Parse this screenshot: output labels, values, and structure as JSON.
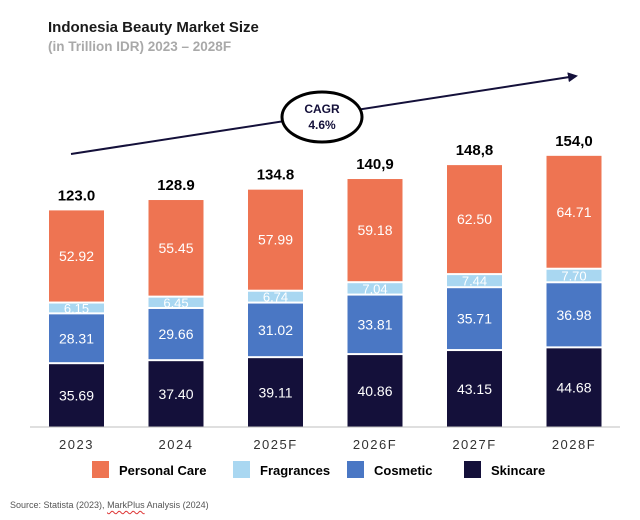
{
  "chart_data": {
    "type": "bar",
    "stacked": true,
    "title": "Indonesia Beauty Market Size",
    "subtitle": "(in Trillion IDR) 2023 – 2028F",
    "categories": [
      "2023",
      "2024",
      "2025F",
      "2026F",
      "2027F",
      "2028F"
    ],
    "totals": [
      "123.0",
      "128.9",
      "134.8",
      "140,9",
      "148,8",
      "154,0"
    ],
    "series": [
      {
        "name": "Skincare",
        "color": "#14103a",
        "values": [
          35.69,
          37.4,
          39.11,
          40.86,
          43.15,
          44.68
        ],
        "labels": [
          "35.69",
          "37.40",
          "39.11",
          "40.86",
          "43.15",
          "44.68"
        ]
      },
      {
        "name": "Cosmetic",
        "color": "#4a77c4",
        "values": [
          28.31,
          29.66,
          31.02,
          33.81,
          35.71,
          36.98
        ],
        "labels": [
          "28.31",
          "29.66",
          "31.02",
          "33.81",
          "35.71",
          "36.98"
        ]
      },
      {
        "name": "Fragrances",
        "color": "#a9d7f1",
        "values": [
          6.15,
          6.45,
          6.74,
          7.04,
          7.44,
          7.7
        ],
        "labels": [
          "6.15",
          "6.45",
          "6.74",
          "7.04",
          "7.44",
          "7.70"
        ]
      },
      {
        "name": "Personal Care",
        "color": "#ee7452",
        "values": [
          52.92,
          55.45,
          57.99,
          59.18,
          62.5,
          64.71
        ],
        "labels": [
          "52.92",
          "55.45",
          "57.99",
          "59.18",
          "62.50",
          "64.71"
        ]
      }
    ],
    "legend_order": [
      "Personal Care",
      "Fragrances",
      "Cosmetic",
      "Skincare"
    ],
    "legend_position": "bottom",
    "ylim": [
      0,
      160
    ],
    "grid": false,
    "annotation": {
      "line1": "CAGR",
      "line2": "4.6%"
    }
  },
  "source": {
    "prefix": "Source: Statista (2023), ",
    "flagged": "MarkPlus",
    "suffix": " Analysis (2024)"
  }
}
